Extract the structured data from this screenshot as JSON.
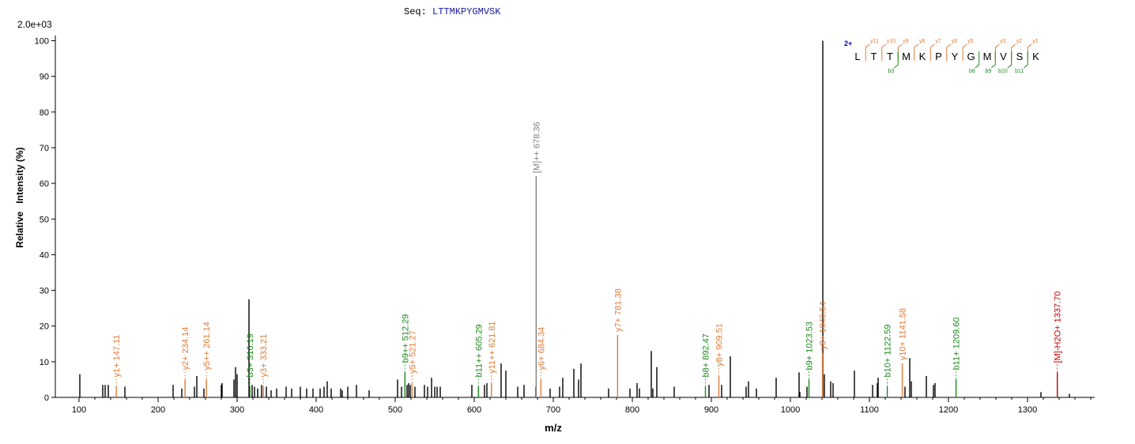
{
  "header": {
    "seq_label": "Seq:",
    "sequence": "LTTMKPYGMVSK",
    "max_intensity": "2.0e+03"
  },
  "colors": {
    "y_ion": "#e07b39",
    "b_ion": "#1b8a1b",
    "precursor": "#7f7f7f",
    "neutral_loss": "#c00000",
    "unassigned": "#000000",
    "charge": "#0000cc"
  },
  "chart_data": {
    "type": "bar",
    "title": "",
    "xlabel": "m/z",
    "ylabel": "Relative   Intensity (%)",
    "xlim": [
      70,
      1385
    ],
    "ylim": [
      0,
      101
    ],
    "x_ticks": [
      100,
      200,
      300,
      400,
      500,
      600,
      700,
      800,
      900,
      1000,
      1100,
      1200,
      1300
    ],
    "y_ticks": [
      0,
      10,
      20,
      30,
      40,
      50,
      60,
      70,
      80,
      90,
      100
    ],
    "annotated_peaks": [
      {
        "mz": 147.11,
        "intensity": 3,
        "label": "y1+ 147.11",
        "ion": "y"
      },
      {
        "mz": 234.14,
        "intensity": 5,
        "label": "y2+ 234.14",
        "ion": "y"
      },
      {
        "mz": 261.14,
        "intensity": 5,
        "label": "y5++ 261.14",
        "ion": "y"
      },
      {
        "mz": 316.19,
        "intensity": 3,
        "label": "b3+ 316.19",
        "ion": "b"
      },
      {
        "mz": 333.21,
        "intensity": 3,
        "label": "y3+ 333.21",
        "ion": "y"
      },
      {
        "mz": 512.29,
        "intensity": 7,
        "label": "b9++ 512.29",
        "ion": "b"
      },
      {
        "mz": 521.27,
        "intensity": 4,
        "label": "y5+ 521.27",
        "ion": "y"
      },
      {
        "mz": 605.29,
        "intensity": 3,
        "label": "b11++ 605.29",
        "ion": "b"
      },
      {
        "mz": 621.81,
        "intensity": 4,
        "label": "y11++ 621.81",
        "ion": "y"
      },
      {
        "mz": 678.36,
        "intensity": 62,
        "label": "[M]++ 678.36",
        "ion": "precursor"
      },
      {
        "mz": 684.34,
        "intensity": 5,
        "label": "y6+ 684.34",
        "ion": "y"
      },
      {
        "mz": 781.38,
        "intensity": 17.5,
        "label": "y7+ 781.38",
        "ion": "y"
      },
      {
        "mz": 892.47,
        "intensity": 3,
        "label": "b8+ 892.47",
        "ion": "b"
      },
      {
        "mz": 909.51,
        "intensity": 6,
        "label": "y8+ 909.51",
        "ion": "y"
      },
      {
        "mz": 1023.53,
        "intensity": 5,
        "label": "b9+ 1023.53",
        "ion": "b"
      },
      {
        "mz": 1040.54,
        "intensity": 12.5,
        "label": "y9+ 1040.54",
        "ion": "y"
      },
      {
        "mz": 1122.59,
        "intensity": 3,
        "label": "b10+ 1122.59",
        "ion": "b"
      },
      {
        "mz": 1141.58,
        "intensity": 9.5,
        "label": "y10+ 1141.58",
        "ion": "y"
      },
      {
        "mz": 1209.6,
        "intensity": 5,
        "label": "b11+ 1209.60",
        "ion": "b"
      },
      {
        "mz": 1337.7,
        "intensity": 7,
        "label": "[M]-H2O+ 1337.70",
        "ion": "neutral_loss"
      }
    ],
    "unassigned_peaks": [
      {
        "mz": 101,
        "intensity": 6.5
      },
      {
        "mz": 130,
        "intensity": 3.5
      },
      {
        "mz": 133,
        "intensity": 3.5
      },
      {
        "mz": 137,
        "intensity": 3.5
      },
      {
        "mz": 158,
        "intensity": 3
      },
      {
        "mz": 219,
        "intensity": 3.5
      },
      {
        "mz": 230,
        "intensity": 2.5
      },
      {
        "mz": 246,
        "intensity": 3
      },
      {
        "mz": 249,
        "intensity": 6
      },
      {
        "mz": 258,
        "intensity": 2.5
      },
      {
        "mz": 280,
        "intensity": 3.5
      },
      {
        "mz": 281,
        "intensity": 4
      },
      {
        "mz": 296,
        "intensity": 5
      },
      {
        "mz": 298,
        "intensity": 8.5
      },
      {
        "mz": 300,
        "intensity": 6.5
      },
      {
        "mz": 315,
        "intensity": 27.5
      },
      {
        "mz": 319,
        "intensity": 3.5
      },
      {
        "mz": 322,
        "intensity": 3
      },
      {
        "mz": 326,
        "intensity": 2.5
      },
      {
        "mz": 331,
        "intensity": 3.5
      },
      {
        "mz": 337,
        "intensity": 3
      },
      {
        "mz": 343,
        "intensity": 2
      },
      {
        "mz": 350,
        "intensity": 2.5
      },
      {
        "mz": 362,
        "intensity": 3
      },
      {
        "mz": 369,
        "intensity": 2.5
      },
      {
        "mz": 380,
        "intensity": 3
      },
      {
        "mz": 388,
        "intensity": 2.5
      },
      {
        "mz": 396,
        "intensity": 2.5
      },
      {
        "mz": 405,
        "intensity": 2.5
      },
      {
        "mz": 410,
        "intensity": 3
      },
      {
        "mz": 414,
        "intensity": 4.5
      },
      {
        "mz": 419,
        "intensity": 2.5
      },
      {
        "mz": 431,
        "intensity": 2.5
      },
      {
        "mz": 433,
        "intensity": 2
      },
      {
        "mz": 440,
        "intensity": 3
      },
      {
        "mz": 451,
        "intensity": 3.5
      },
      {
        "mz": 467,
        "intensity": 2
      },
      {
        "mz": 503,
        "intensity": 5
      },
      {
        "mz": 508,
        "intensity": 3
      },
      {
        "mz": 515,
        "intensity": 3.5
      },
      {
        "mz": 517,
        "intensity": 4
      },
      {
        "mz": 519,
        "intensity": 3.5
      },
      {
        "mz": 525,
        "intensity": 3
      },
      {
        "mz": 537,
        "intensity": 3.5
      },
      {
        "mz": 541,
        "intensity": 3
      },
      {
        "mz": 546,
        "intensity": 5.5
      },
      {
        "mz": 550,
        "intensity": 3
      },
      {
        "mz": 553,
        "intensity": 3
      },
      {
        "mz": 557,
        "intensity": 3
      },
      {
        "mz": 597,
        "intensity": 3.5
      },
      {
        "mz": 613,
        "intensity": 3.5
      },
      {
        "mz": 616,
        "intensity": 4
      },
      {
        "mz": 634,
        "intensity": 9.5
      },
      {
        "mz": 640,
        "intensity": 7.5
      },
      {
        "mz": 655,
        "intensity": 3
      },
      {
        "mz": 663,
        "intensity": 3.5
      },
      {
        "mz": 678,
        "intensity": 3
      },
      {
        "mz": 696,
        "intensity": 2.5
      },
      {
        "mz": 708,
        "intensity": 3
      },
      {
        "mz": 712,
        "intensity": 5.5
      },
      {
        "mz": 726,
        "intensity": 8
      },
      {
        "mz": 732,
        "intensity": 5
      },
      {
        "mz": 735,
        "intensity": 9.5
      },
      {
        "mz": 770,
        "intensity": 2.5
      },
      {
        "mz": 797,
        "intensity": 2.5
      },
      {
        "mz": 806,
        "intensity": 4
      },
      {
        "mz": 809,
        "intensity": 2.5
      },
      {
        "mz": 824,
        "intensity": 13
      },
      {
        "mz": 826,
        "intensity": 2.5
      },
      {
        "mz": 831,
        "intensity": 8.5
      },
      {
        "mz": 853,
        "intensity": 3
      },
      {
        "mz": 897,
        "intensity": 3.5
      },
      {
        "mz": 913,
        "intensity": 3.5
      },
      {
        "mz": 924,
        "intensity": 11.5
      },
      {
        "mz": 944,
        "intensity": 3
      },
      {
        "mz": 947,
        "intensity": 4.5
      },
      {
        "mz": 957,
        "intensity": 2.5
      },
      {
        "mz": 982,
        "intensity": 5.5
      },
      {
        "mz": 1011,
        "intensity": 7
      },
      {
        "mz": 1012,
        "intensity": 1.5
      },
      {
        "mz": 1021,
        "intensity": 3
      },
      {
        "mz": 1041,
        "intensity": 100
      },
      {
        "mz": 1043,
        "intensity": 6.5
      },
      {
        "mz": 1051,
        "intensity": 4.5
      },
      {
        "mz": 1054,
        "intensity": 4
      },
      {
        "mz": 1081,
        "intensity": 7.5
      },
      {
        "mz": 1104,
        "intensity": 3.5
      },
      {
        "mz": 1110,
        "intensity": 4
      },
      {
        "mz": 1111,
        "intensity": 5.5
      },
      {
        "mz": 1145,
        "intensity": 3
      },
      {
        "mz": 1151,
        "intensity": 11
      },
      {
        "mz": 1153,
        "intensity": 4.5
      },
      {
        "mz": 1172,
        "intensity": 6
      },
      {
        "mz": 1181,
        "intensity": 3.5
      },
      {
        "mz": 1183,
        "intensity": 4
      },
      {
        "mz": 1317,
        "intensity": 1.5
      },
      {
        "mz": 1353,
        "intensity": 1
      }
    ],
    "fragment_map": {
      "charge_label": "2+",
      "residues": [
        "L",
        "T",
        "T",
        "M",
        "K",
        "P",
        "Y",
        "G",
        "M",
        "V",
        "S",
        "K"
      ],
      "y_markers": [
        {
          "after": 1,
          "label": "y11"
        },
        {
          "after": 2,
          "label": "y10"
        },
        {
          "after": 3,
          "label": "y9"
        },
        {
          "after": 4,
          "label": "y8"
        },
        {
          "after": 5,
          "label": "y7"
        },
        {
          "after": 6,
          "label": "y6"
        },
        {
          "after": 7,
          "label": "y5"
        },
        {
          "after": 9,
          "label": "y3"
        },
        {
          "after": 10,
          "label": "y2"
        },
        {
          "after": 11,
          "label": "y1"
        }
      ],
      "b_markers": [
        {
          "after": 3,
          "label": "b3"
        },
        {
          "after": 8,
          "label": "b8"
        },
        {
          "after": 9,
          "label": "b9"
        },
        {
          "after": 10,
          "label": "b10"
        },
        {
          "after": 11,
          "label": "b11"
        }
      ]
    }
  }
}
